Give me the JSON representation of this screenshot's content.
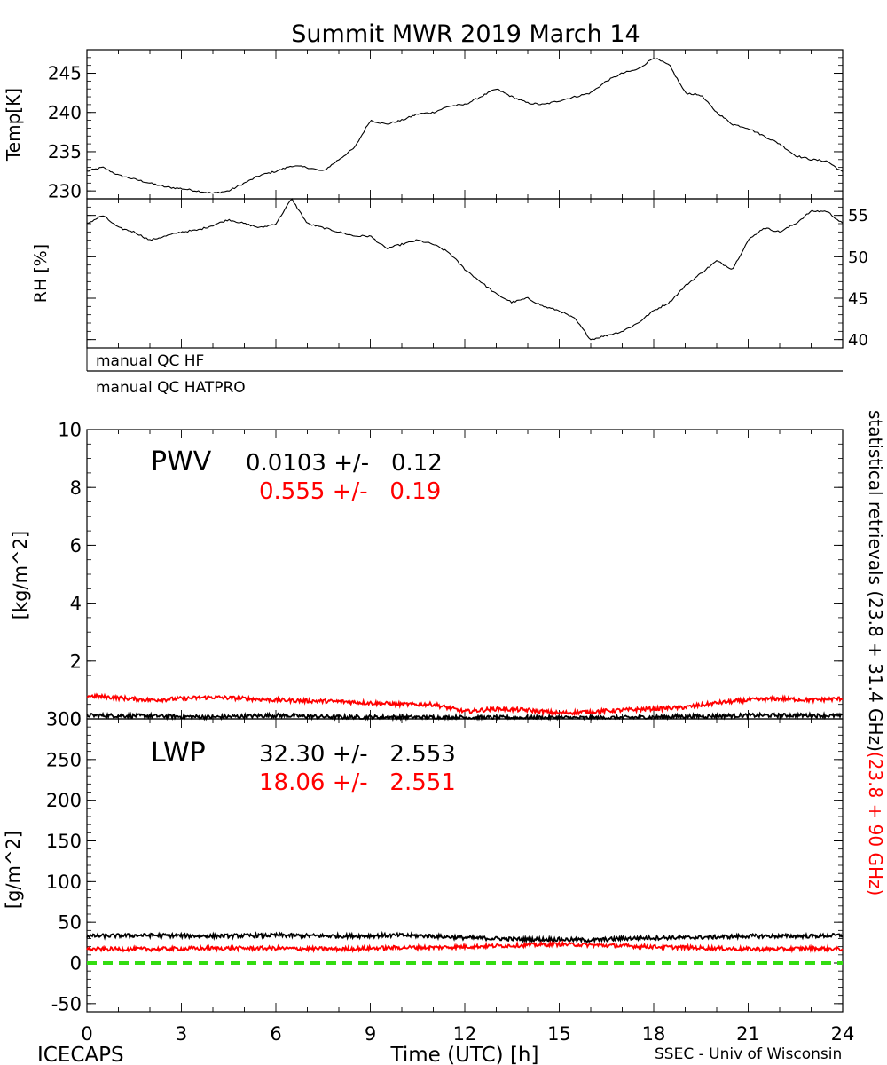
{
  "page": {
    "title": "Summit MWR 2019 March 14",
    "footer_left": "ICECAPS",
    "footer_right": "SSEC - Univ of Wisconsin",
    "colors": {
      "black_series": "#000000",
      "red_series": "#ff0000",
      "zero_line": "#33dd11"
    }
  },
  "chart_data": [
    {
      "type": "line",
      "panel": "temperature",
      "ylabel": "Temp[K]",
      "ylim": [
        229,
        248
      ],
      "yticks": [
        "230",
        "235",
        "240",
        "245"
      ],
      "x": [
        0,
        0.5,
        1,
        1.5,
        2,
        2.5,
        3,
        3.5,
        4,
        4.5,
        5,
        5.5,
        6,
        6.5,
        7,
        7.5,
        8,
        8.5,
        9,
        9.5,
        10,
        10.5,
        11,
        11.5,
        12,
        12.5,
        13,
        13.5,
        14,
        14.5,
        15,
        15.5,
        16,
        16.5,
        17,
        17.5,
        18,
        18.5,
        19,
        19.5,
        20,
        20.5,
        21,
        21.5,
        22,
        22.5,
        23,
        23.5,
        24
      ],
      "values": [
        232.5,
        233,
        232,
        231.5,
        231,
        230.5,
        230.3,
        230,
        229.7,
        230,
        231,
        232,
        232.5,
        233.2,
        233,
        232.5,
        234,
        235.5,
        239,
        238.5,
        239,
        239.8,
        240,
        240.8,
        241,
        242,
        243,
        242,
        241.2,
        241,
        241.5,
        242,
        242.5,
        244,
        245,
        245.5,
        247,
        246,
        242.5,
        242.2,
        240,
        238.5,
        238,
        237,
        236,
        234.5,
        234,
        233.8,
        232.4
      ]
    },
    {
      "type": "line",
      "panel": "relative-humidity",
      "ylabel": "RH [%]",
      "ylim": [
        39,
        57
      ],
      "yticks": [
        "40",
        "45",
        "50",
        "55"
      ],
      "x": [
        0,
        0.5,
        1,
        1.5,
        2,
        2.5,
        3,
        3.5,
        4,
        4.5,
        5,
        5.5,
        6,
        6.5,
        7,
        7.5,
        8,
        8.5,
        9,
        9.5,
        10,
        10.5,
        11,
        11.5,
        12,
        12.5,
        13,
        13.5,
        14,
        14.5,
        15,
        15.5,
        16,
        16.5,
        17,
        17.5,
        18,
        18.5,
        19,
        19.5,
        20,
        20.5,
        21,
        21.5,
        22,
        22.5,
        23,
        23.5,
        24
      ],
      "values": [
        54,
        55,
        53.5,
        53,
        52,
        52.5,
        53,
        53.2,
        53.8,
        54.5,
        54,
        53.5,
        54,
        57,
        54,
        53.5,
        53,
        52.5,
        52.5,
        51,
        51.5,
        52,
        51.5,
        50.5,
        48.5,
        47,
        45.5,
        44.5,
        45,
        44,
        43.5,
        42.5,
        40,
        40.5,
        41,
        42,
        43.5,
        44.5,
        46.5,
        48,
        49.5,
        48.5,
        52,
        53.5,
        53,
        54,
        55.5,
        55.5,
        54
      ]
    },
    {
      "type": "line",
      "panel": "pwv",
      "ylabel": "[kg/m^2]",
      "ylim": [
        0,
        10
      ],
      "yticks": [
        "0",
        "2",
        "4",
        "6",
        "8",
        "10"
      ],
      "annotation": {
        "label": "PWV",
        "lines": [
          {
            "text": "0.0103 +/-   0.12",
            "color": "#000000"
          },
          {
            "text": "0.555 +/-   0.19",
            "color": "#ff0000"
          }
        ]
      },
      "x": [
        0,
        2,
        4,
        6,
        8,
        10,
        11,
        12,
        13,
        14,
        15,
        16,
        17,
        18,
        19,
        20,
        21,
        22,
        23,
        24
      ],
      "series": [
        {
          "color": "#000000",
          "values": [
            0.12,
            0.1,
            0.06,
            0.12,
            0.06,
            0.06,
            0.05,
            0.05,
            0.04,
            0.04,
            0.04,
            0.03,
            0.04,
            0.06,
            0.09,
            0.1,
            0.12,
            0.12,
            0.12,
            0.1
          ]
        },
        {
          "color": "#ff0000",
          "values": [
            0.8,
            0.65,
            0.75,
            0.65,
            0.6,
            0.5,
            0.5,
            0.25,
            0.35,
            0.3,
            0.2,
            0.25,
            0.3,
            0.35,
            0.4,
            0.55,
            0.65,
            0.7,
            0.65,
            0.7
          ]
        }
      ]
    },
    {
      "type": "line",
      "panel": "lwp",
      "ylabel": "[g/m^2]",
      "ylim": [
        -60,
        300
      ],
      "yticks": [
        "-50",
        "0",
        "50",
        "100",
        "150",
        "200",
        "250",
        "300"
      ],
      "xlabel": "Time (UTC) [h]",
      "xticks": [
        "0",
        "3",
        "6",
        "9",
        "12",
        "15",
        "18",
        "21",
        "24"
      ],
      "annotation": {
        "label": "LWP",
        "lines": [
          {
            "text": "32.30 +/-   2.553",
            "color": "#000000"
          },
          {
            "text": "18.06 +/-   2.551",
            "color": "#ff0000"
          }
        ]
      },
      "x": [
        0,
        2,
        4,
        6,
        8,
        10,
        11,
        12,
        13,
        14,
        15,
        16,
        17,
        18,
        19,
        20,
        21,
        22,
        23,
        24
      ],
      "series": [
        {
          "color": "#000000",
          "values": [
            33,
            34,
            33,
            34,
            33,
            34,
            33,
            31,
            30,
            29,
            29,
            28,
            30,
            31,
            31,
            32,
            33,
            33,
            33,
            34
          ]
        },
        {
          "color": "#ff0000",
          "values": [
            17,
            17,
            18,
            18,
            17,
            19,
            19,
            20,
            21,
            22,
            23,
            22,
            21,
            20,
            19,
            18,
            17,
            17,
            18,
            17
          ]
        },
        {
          "color": "#33dd11",
          "values": [
            0,
            0,
            0,
            0,
            0,
            0,
            0,
            0,
            0,
            0,
            0,
            0,
            0,
            0,
            0,
            0,
            0,
            0,
            0,
            0
          ]
        }
      ]
    }
  ],
  "qc_labels": [
    "manual QC HF",
    "manual QC HATPRO"
  ],
  "side_label": {
    "black": "statistical retrievals (23.8 + 31.4 GHz)",
    "red": "(23.8 + 90 GHz)"
  }
}
